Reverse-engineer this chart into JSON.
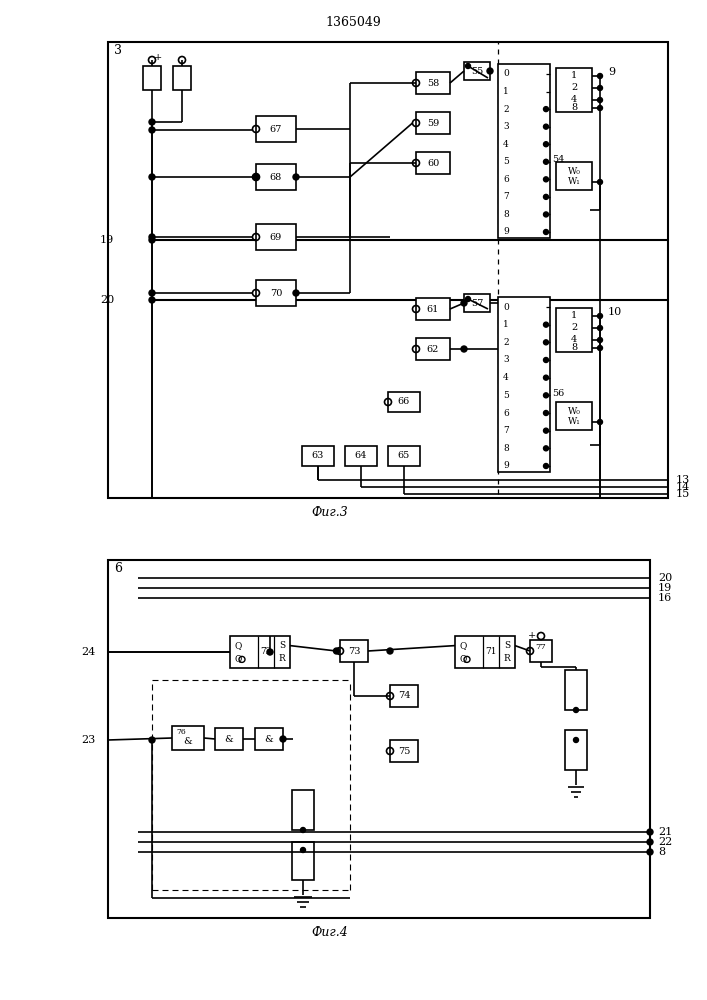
{
  "title": "1365049",
  "caption3": "Фиг.3",
  "caption4": "Фиг.4",
  "bg_color": "#ffffff",
  "fig_width": 7.07,
  "fig_height": 10.0
}
